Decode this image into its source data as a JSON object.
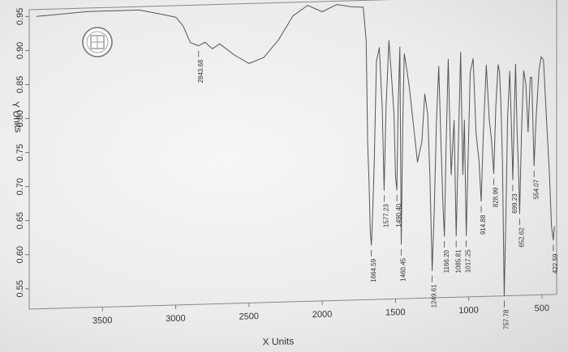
{
  "chart_data": {
    "type": "line",
    "title": "",
    "xlabel": "X Units",
    "ylabel": "Y Units",
    "xlim": [
      4000,
      400
    ],
    "ylim": [
      0.52,
      0.96
    ],
    "x_ticks": [
      3500,
      3000,
      2500,
      2000,
      1500,
      1000,
      500
    ],
    "y_ticks": [
      0.55,
      0.6,
      0.65,
      0.7,
      0.75,
      0.8,
      0.85,
      0.9,
      0.95
    ],
    "grid": false,
    "series": [
      {
        "x": [
          3950,
          3800,
          3600,
          3400,
          3250,
          3100,
          3000,
          2950,
          2900,
          2843.68,
          2800,
          2750,
          2700,
          2600,
          2500,
          2400,
          2300,
          2200,
          2100,
          2000,
          1900,
          1800,
          1720,
          1700,
          1690,
          1680,
          1672,
          1664.59,
          1655,
          1645,
          1630,
          1610,
          1590,
          1577.23,
          1565,
          1545,
          1525,
          1510,
          1500,
          1490.4,
          1482,
          1470,
          1460.45,
          1450,
          1440,
          1425,
          1405,
          1380,
          1350,
          1320,
          1300,
          1280,
          1265,
          1249.61,
          1235,
          1220,
          1205,
          1190,
          1175,
          1166.2,
          1155,
          1140,
          1120,
          1100,
          1085.81,
          1070,
          1055,
          1040,
          1030,
          1017.25,
          1005,
          990,
          970,
          950,
          930,
          914.88,
          900,
          880,
          860,
          845,
          828.99,
          815,
          800,
          790,
          780,
          770,
          757.78,
          745,
          735,
          720,
          710,
          699.23,
          690,
          680,
          670,
          660,
          652.62,
          640,
          625,
          610,
          595,
          580,
          570,
          554.07,
          540,
          520,
          505,
          490,
          470,
          450,
          435,
          422.59,
          415
        ],
        "y": [
          0.95,
          0.952,
          0.955,
          0.955,
          0.955,
          0.948,
          0.943,
          0.93,
          0.905,
          0.9,
          0.905,
          0.895,
          0.902,
          0.885,
          0.872,
          0.88,
          0.905,
          0.94,
          0.955,
          0.945,
          0.955,
          0.951,
          0.95,
          0.9,
          0.75,
          0.69,
          0.62,
          0.6,
          0.65,
          0.72,
          0.87,
          0.89,
          0.8,
          0.68,
          0.8,
          0.9,
          0.84,
          0.79,
          0.7,
          0.68,
          0.8,
          0.89,
          0.6,
          0.78,
          0.88,
          0.86,
          0.83,
          0.78,
          0.72,
          0.75,
          0.82,
          0.79,
          0.7,
          0.56,
          0.65,
          0.78,
          0.86,
          0.75,
          0.65,
          0.61,
          0.74,
          0.87,
          0.7,
          0.78,
          0.61,
          0.75,
          0.88,
          0.7,
          0.78,
          0.61,
          0.72,
          0.85,
          0.87,
          0.76,
          0.72,
          0.66,
          0.76,
          0.86,
          0.78,
          0.75,
          0.7,
          0.8,
          0.86,
          0.85,
          0.8,
          0.72,
          0.52,
          0.65,
          0.78,
          0.85,
          0.78,
          0.69,
          0.78,
          0.86,
          0.76,
          0.7,
          0.64,
          0.76,
          0.85,
          0.83,
          0.76,
          0.84,
          0.84,
          0.71,
          0.78,
          0.85,
          0.87,
          0.865,
          0.78,
          0.7,
          0.62,
          0.6,
          0.62
        ]
      }
    ],
    "peak_labels": [
      {
        "x": 2843.68,
        "label": "2843.68",
        "y": 0.9
      },
      {
        "x": 1664.59,
        "label": "1664.59",
        "y": 0.6
      },
      {
        "x": 1577.23,
        "label": "1577.23",
        "y": 0.68
      },
      {
        "x": 1490.4,
        "label": "1490.40",
        "y": 0.68
      },
      {
        "x": 1460.45,
        "label": "1460.45",
        "y": 0.6
      },
      {
        "x": 1249.61,
        "label": "1249.61",
        "y": 0.56
      },
      {
        "x": 1166.2,
        "label": "1166.20",
        "y": 0.61
      },
      {
        "x": 1085.81,
        "label": "1085.81",
        "y": 0.61
      },
      {
        "x": 1017.25,
        "label": "1017.25",
        "y": 0.61
      },
      {
        "x": 914.88,
        "label": "914.88",
        "y": 0.66
      },
      {
        "x": 828.99,
        "label": "828.99",
        "y": 0.7
      },
      {
        "x": 757.78,
        "label": "757.78",
        "y": 0.52
      },
      {
        "x": 699.23,
        "label": "699.23",
        "y": 0.69
      },
      {
        "x": 652.62,
        "label": "652.62",
        "y": 0.64
      },
      {
        "x": 554.07,
        "label": "554.07",
        "y": 0.71
      },
      {
        "x": 422.59,
        "label": "422.59",
        "y": 0.6
      }
    ]
  },
  "logo": {
    "name": "seal-logo"
  }
}
